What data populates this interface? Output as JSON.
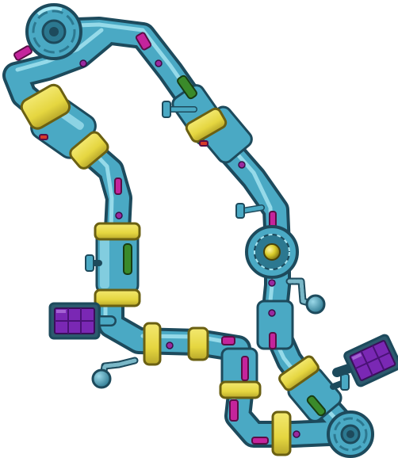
{
  "scene": {
    "name": "pipe-machine-puzzle",
    "colors": {
      "pipe": "#4aa9c4",
      "pipe_dark": "#2c7890",
      "pipe_outline": "#1d4a5c",
      "pipe_shine": "#a8e6f2",
      "collar": "#e5d640",
      "collar_dark": "#a89a1c",
      "magenta_slot": "#c4249c",
      "green_slot": "#3a8a2a",
      "purple_panel": "#7a28b4",
      "panel_frame": "#1d4a5c",
      "knob": "#4aa9c4",
      "center_ball": "#d8cb2a"
    },
    "icons": [
      "gear-hub-icon",
      "valve-knob-icon",
      "purple-grid-panel-icon",
      "brass-ball-icon"
    ]
  }
}
